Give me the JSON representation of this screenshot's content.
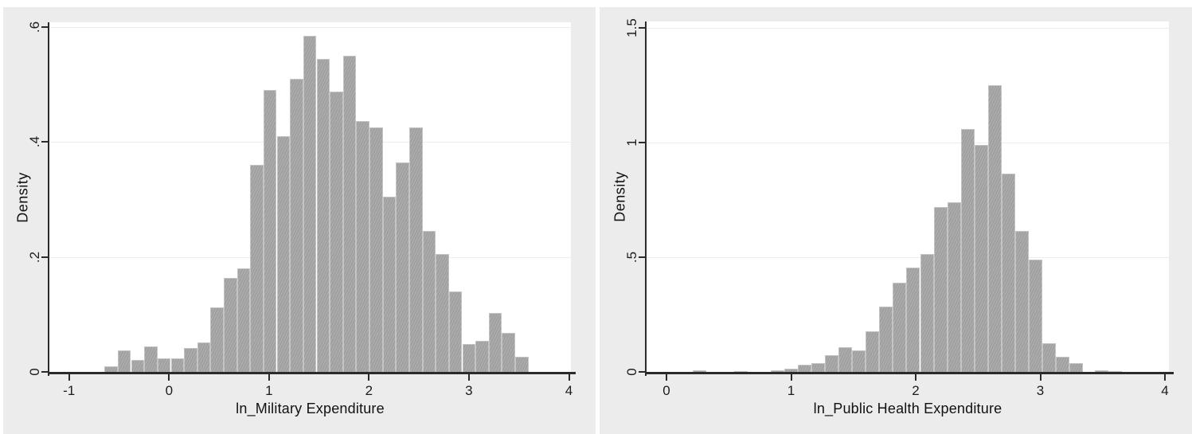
{
  "page": {
    "background": "#ffffff",
    "panel_background": "#ececec",
    "description": "Two Stata-style histograms shown side by side"
  },
  "colors": {
    "bar_fill": "#a8a8a8",
    "bar_border": "#c4c4c4",
    "axis": "#2b2b2b",
    "grid": "#ededed",
    "text": "#1c1c1c",
    "plot_background": "#ffffff"
  },
  "chart_data": [
    {
      "type": "bar",
      "subtype": "histogram",
      "title": "",
      "xlabel": "ln_Military Expenditure",
      "ylabel": "Density",
      "legend": "none",
      "grid": "horizontal",
      "xlim": [
        -1.197,
        4.02
      ],
      "ylim": [
        0,
        0.608
      ],
      "bin_width": 0.1325,
      "x_ticks": [
        {
          "v": -1,
          "label": "-1"
        },
        {
          "v": 0,
          "label": "0"
        },
        {
          "v": 1,
          "label": "1"
        },
        {
          "v": 2,
          "label": "2"
        },
        {
          "v": 3,
          "label": "3"
        },
        {
          "v": 4,
          "label": "4"
        }
      ],
      "y_ticks": [
        {
          "v": 0,
          "label": "0"
        },
        {
          "v": 0.2,
          "label": ".2"
        },
        {
          "v": 0.4,
          "label": ".4"
        },
        {
          "v": 0.6,
          "label": ".6"
        }
      ],
      "bars": [
        [
          -0.645,
          0.01
        ],
        [
          -0.513,
          0.038
        ],
        [
          -0.38,
          0.021
        ],
        [
          -0.248,
          0.045
        ],
        [
          -0.115,
          0.024
        ],
        [
          0.018,
          0.024
        ],
        [
          0.15,
          0.042
        ],
        [
          0.283,
          0.052
        ],
        [
          0.415,
          0.112
        ],
        [
          0.548,
          0.163
        ],
        [
          0.68,
          0.18
        ],
        [
          0.813,
          0.36
        ],
        [
          0.945,
          0.49
        ],
        [
          1.078,
          0.41
        ],
        [
          1.21,
          0.51
        ],
        [
          1.343,
          0.585
        ],
        [
          1.475,
          0.545
        ],
        [
          1.608,
          0.487
        ],
        [
          1.74,
          0.55
        ],
        [
          1.873,
          0.437
        ],
        [
          2.005,
          0.425
        ],
        [
          2.138,
          0.305
        ],
        [
          2.27,
          0.365
        ],
        [
          2.403,
          0.425
        ],
        [
          2.535,
          0.245
        ],
        [
          2.668,
          0.205
        ],
        [
          2.8,
          0.14
        ],
        [
          2.933,
          0.048
        ],
        [
          3.065,
          0.054
        ],
        [
          3.198,
          0.103
        ],
        [
          3.33,
          0.068
        ],
        [
          3.463,
          0.027
        ]
      ]
    },
    {
      "type": "bar",
      "subtype": "histogram",
      "title": "",
      "xlabel": "ln_Public Health Expenditure",
      "ylabel": "Density",
      "legend": "none",
      "grid": "horizontal",
      "xlim": [
        -0.16,
        4.032
      ],
      "ylim": [
        0,
        1.528
      ],
      "bin_width": 0.109,
      "x_ticks": [
        {
          "v": 0,
          "label": "0"
        },
        {
          "v": 1,
          "label": "1"
        },
        {
          "v": 2,
          "label": "2"
        },
        {
          "v": 3,
          "label": "3"
        },
        {
          "v": 4,
          "label": "4"
        }
      ],
      "y_ticks": [
        {
          "v": 0,
          "label": "0"
        },
        {
          "v": 0.5,
          "label": ".5"
        },
        {
          "v": 1,
          "label": "1"
        },
        {
          "v": 1.5,
          "label": "1.5"
        }
      ],
      "bars": [
        [
          0.21,
          0.006
        ],
        [
          0.54,
          0.004
        ],
        [
          0.836,
          0.008
        ],
        [
          0.945,
          0.015
        ],
        [
          1.054,
          0.031
        ],
        [
          1.163,
          0.038
        ],
        [
          1.272,
          0.073
        ],
        [
          1.381,
          0.108
        ],
        [
          1.49,
          0.095
        ],
        [
          1.599,
          0.177
        ],
        [
          1.708,
          0.285
        ],
        [
          1.817,
          0.39
        ],
        [
          1.926,
          0.455
        ],
        [
          2.035,
          0.515
        ],
        [
          2.144,
          0.72
        ],
        [
          2.253,
          0.74
        ],
        [
          2.362,
          1.06
        ],
        [
          2.471,
          0.99
        ],
        [
          2.58,
          1.25
        ],
        [
          2.689,
          0.865
        ],
        [
          2.798,
          0.615
        ],
        [
          2.907,
          0.49
        ],
        [
          3.016,
          0.125
        ],
        [
          3.125,
          0.065
        ],
        [
          3.234,
          0.04
        ],
        [
          3.44,
          0.006
        ],
        [
          3.549,
          0.005
        ]
      ]
    }
  ]
}
